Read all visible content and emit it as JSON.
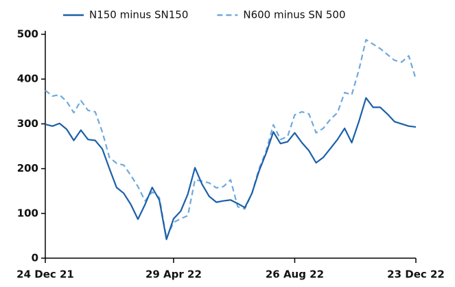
{
  "chart_data": {
    "type": "line",
    "categories": [
      "24 Dec 21",
      null,
      null,
      null,
      null,
      null,
      null,
      null,
      null,
      null,
      null,
      null,
      null,
      null,
      null,
      null,
      null,
      null,
      "29 Apr 22",
      null,
      null,
      null,
      null,
      null,
      null,
      null,
      null,
      null,
      null,
      null,
      null,
      null,
      null,
      null,
      null,
      "26 Aug 22",
      null,
      null,
      null,
      null,
      null,
      null,
      null,
      null,
      null,
      null,
      null,
      null,
      null,
      null,
      null,
      null,
      "23 Dec 22"
    ],
    "series": [
      {
        "name": "N150 minus SN150",
        "color": "#1a5fa8",
        "dashed": false,
        "values": [
          299,
          295,
          301,
          288,
          263,
          286,
          265,
          263,
          244,
          200,
          158,
          145,
          120,
          87,
          120,
          158,
          130,
          42,
          88,
          105,
          143,
          202,
          165,
          138,
          125,
          128,
          130,
          122,
          113,
          145,
          195,
          235,
          282,
          256,
          260,
          280,
          258,
          240,
          213,
          225,
          245,
          265,
          290,
          258,
          305,
          358,
          337,
          337,
          322,
          305,
          300,
          295,
          293
        ]
      },
      {
        "name": "N600 minus SN 500",
        "color": "#6fa8dc",
        "dashed": true,
        "values": [
          375,
          362,
          365,
          350,
          325,
          352,
          330,
          327,
          282,
          225,
          212,
          208,
          185,
          160,
          128,
          148,
          135,
          45,
          80,
          88,
          95,
          175,
          172,
          168,
          157,
          160,
          175,
          115,
          110,
          145,
          200,
          240,
          298,
          265,
          272,
          320,
          327,
          322,
          280,
          290,
          310,
          325,
          370,
          365,
          420,
          488,
          478,
          468,
          455,
          442,
          438,
          452,
          400
        ]
      }
    ],
    "ylim": [
      0,
      500
    ],
    "yticks": [
      0,
      100,
      200,
      300,
      400,
      500
    ],
    "legend": "top"
  }
}
